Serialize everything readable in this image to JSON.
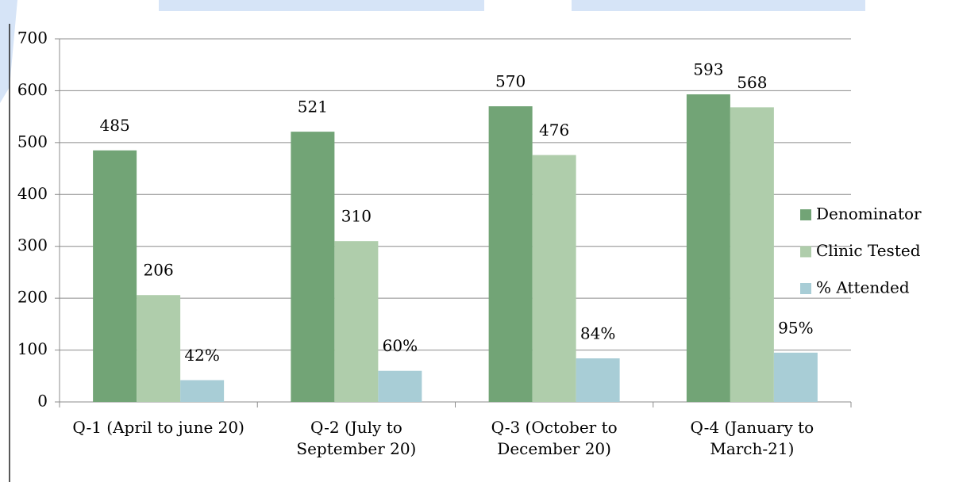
{
  "chart_data": {
    "type": "bar",
    "categories": [
      "Q-1 (April to june 20)",
      "Q-2 (July to September 20)",
      "Q-3 (October to December 20)",
      "Q-4 (January to March-21)"
    ],
    "series": [
      {
        "name": "Denominator",
        "color": "#72a476",
        "values": [
          485,
          521,
          570,
          593
        ]
      },
      {
        "name": "Clinic Tested",
        "color": "#afcdab",
        "values": [
          206,
          310,
          476,
          568
        ]
      },
      {
        "name": "% Attended",
        "color": "#a8cdd6",
        "values": [
          42,
          60,
          84,
          95
        ],
        "value_labels": [
          "42%",
          "60%",
          "84%",
          "95%"
        ]
      }
    ],
    "ylim": [
      0,
      700
    ],
    "yticks": [
      0,
      100,
      200,
      300,
      400,
      500,
      600,
      700
    ],
    "grid": true,
    "legend": "right"
  }
}
